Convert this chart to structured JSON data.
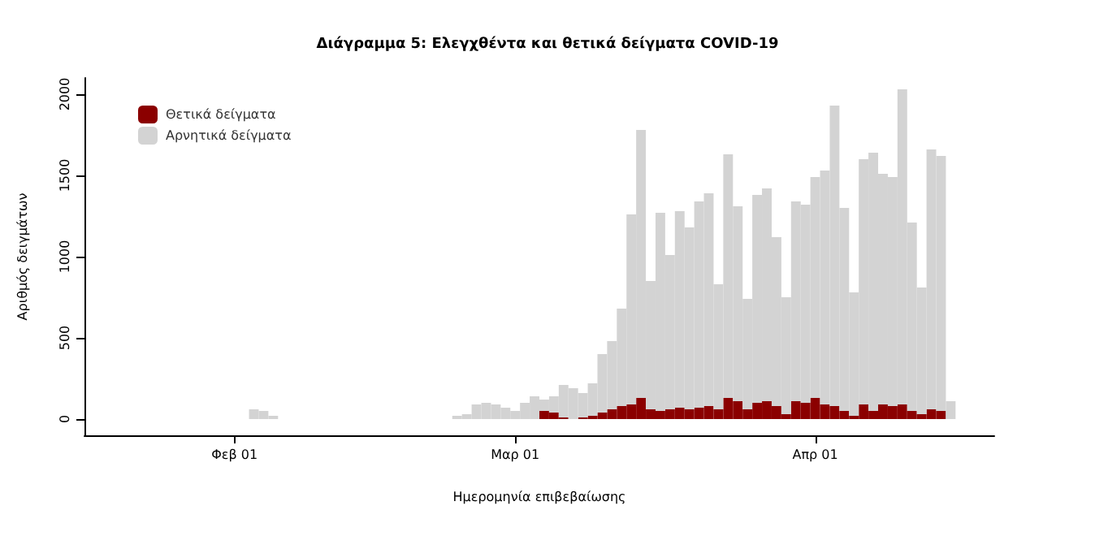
{
  "chart_data": {
    "type": "bar",
    "stacked": true,
    "title": "Διάγραμμα 5: Ελεγχθέντα και θετικά δείγματα COVID-19",
    "xlabel": "Ημερομηνία επιβεβαίωσης",
    "ylabel": "Αριθμός δειγμάτων",
    "x": [
      "--01-24",
      "--01-25",
      "--01-26",
      "--01-27",
      "--01-28",
      "--01-29",
      "--01-30",
      "--01-31",
      "--02-01",
      "--02-02",
      "--02-03",
      "--02-04",
      "--02-05",
      "--02-06",
      "--02-07",
      "--02-08",
      "--02-09",
      "--02-10",
      "--02-11",
      "--02-12",
      "--02-13",
      "--02-14",
      "--02-15",
      "--02-16",
      "--02-17",
      "--02-18",
      "--02-19",
      "--02-20",
      "--02-21",
      "--02-22",
      "--02-23",
      "--02-24",
      "--02-25",
      "--02-26",
      "--02-27",
      "--02-28",
      "--02-29",
      "--03-01",
      "--03-02",
      "--03-03",
      "--03-04",
      "--03-05",
      "--03-06",
      "--03-07",
      "--03-08",
      "--03-09",
      "--03-10",
      "--03-11",
      "--03-12",
      "--03-13",
      "--03-14",
      "--03-15",
      "--03-16",
      "--03-17",
      "--03-18",
      "--03-19",
      "--03-20",
      "--03-21",
      "--03-22",
      "--03-23",
      "--03-24",
      "--03-25",
      "--03-26",
      "--03-27",
      "--03-28",
      "--03-29",
      "--03-30",
      "--03-31",
      "--04-01",
      "--04-02",
      "--04-03",
      "--04-04",
      "--04-05",
      "--04-06",
      "--04-07",
      "--04-08",
      "--04-09",
      "--04-10",
      "--04-11",
      "--04-12",
      "--04-13",
      "--04-14",
      "--04-15"
    ],
    "series": [
      {
        "name": "Θετικά δείγματα",
        "color": "#8b0000",
        "values": [
          0,
          0,
          0,
          0,
          0,
          0,
          0,
          0,
          0,
          0,
          0,
          0,
          0,
          0,
          0,
          0,
          0,
          0,
          0,
          0,
          0,
          0,
          0,
          0,
          0,
          0,
          0,
          0,
          0,
          0,
          0,
          0,
          0,
          0,
          0,
          0,
          0,
          0,
          0,
          0,
          50,
          40,
          10,
          0,
          10,
          20,
          40,
          60,
          80,
          90,
          130,
          60,
          50,
          60,
          70,
          60,
          70,
          80,
          60,
          130,
          110,
          60,
          100,
          110,
          80,
          30,
          110,
          100,
          130,
          90,
          80,
          50,
          20,
          90,
          50,
          90,
          80,
          90,
          50,
          30,
          60,
          50,
          0
        ]
      },
      {
        "name": "Αρνητικά δείγματα",
        "color": "#d3d3d3",
        "values": [
          0,
          0,
          0,
          0,
          0,
          0,
          0,
          0,
          0,
          0,
          60,
          50,
          20,
          0,
          0,
          0,
          0,
          0,
          0,
          0,
          0,
          0,
          0,
          0,
          0,
          0,
          0,
          0,
          0,
          0,
          null,
          20,
          30,
          90,
          100,
          90,
          70,
          50,
          100,
          140,
          70,
          100,
          200,
          190,
          150,
          200,
          360,
          420,
          600,
          1170,
          1650,
          790,
          1220,
          950,
          1210,
          1120,
          1270,
          1310,
          770,
          1500,
          1200,
          680,
          1280,
          1310,
          1040,
          720,
          1230,
          1220,
          1360,
          1440,
          1850,
          1250,
          760,
          1510,
          1590,
          1420,
          1410,
          1940,
          1160,
          780,
          1600,
          1570,
          110
        ]
      }
    ],
    "xlim": [
      "--01-17",
      "--04-19"
    ],
    "xticks": [
      {
        "value": "--02-01",
        "label": "Φεβ 01"
      },
      {
        "value": "--03-01",
        "label": "Μαρ 01"
      },
      {
        "value": "--04-01",
        "label": "Απρ 01"
      }
    ],
    "ylim": [
      -100,
      2100
    ],
    "yticks": [
      0,
      500,
      1000,
      1500,
      2000
    ],
    "grid": false,
    "legend": "top left"
  }
}
